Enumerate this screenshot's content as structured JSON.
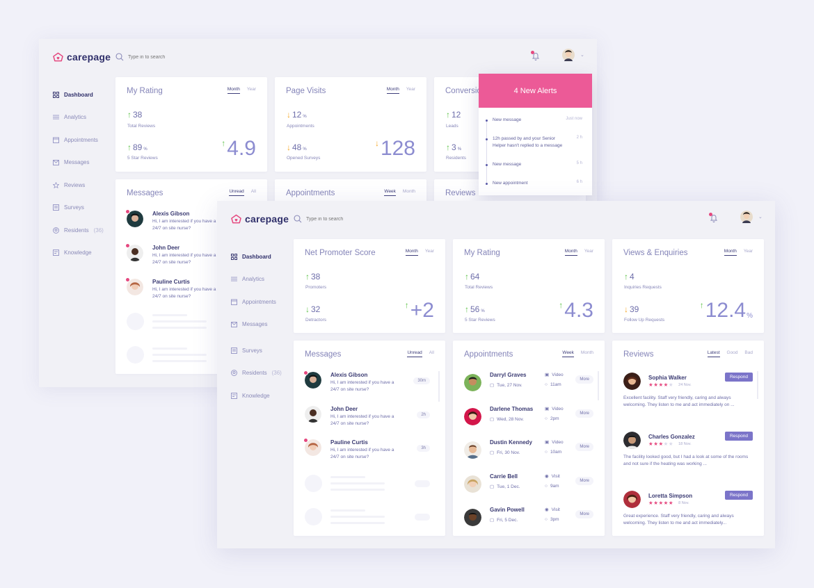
{
  "colors": {
    "accent": "#e5487f",
    "brand_text": "#2f2f6a",
    "up": "#5dc247",
    "down": "#f5a623",
    "respond": "#7b74c9",
    "alert_header": "#ec5a97"
  },
  "back": {
    "logo": "carepage",
    "search_placeholder": "Type in to search",
    "sidebar": [
      {
        "label": "Dashboard",
        "icon": "grid-icon"
      },
      {
        "label": "Analytics",
        "icon": "sliders-icon"
      },
      {
        "label": "Appointments",
        "icon": "calendar-icon"
      },
      {
        "label": "Messages",
        "icon": "mail-icon"
      },
      {
        "label": "Reviews",
        "icon": "star-icon"
      },
      {
        "label": "Surveys",
        "icon": "survey-icon"
      },
      {
        "label": "Residents",
        "count": "(36)",
        "icon": "residents-icon"
      },
      {
        "label": "Knowledge",
        "icon": "book-icon"
      }
    ],
    "rating": {
      "title": "My Rating",
      "tabs": [
        "Month",
        "Year"
      ],
      "v1": "38",
      "l1": "Total Reviews",
      "v2": "89",
      "v2_unit": "%",
      "l2": "5 Star Reviews",
      "big": "4.9"
    },
    "visits": {
      "title": "Page Visits",
      "tabs": [
        "Month",
        "Year"
      ],
      "v1": "12",
      "v1_unit": "%",
      "l1": "Appointments",
      "v2": "48",
      "v2_unit": "%",
      "l2": "Opened Surveys",
      "big": "128"
    },
    "conversions": {
      "title": "Conversio",
      "v1": "12",
      "l1": "Leads",
      "v2": "3",
      "v2_unit": "%",
      "l2": "Residents"
    },
    "messages": {
      "title": "Messages",
      "tabs": [
        "Unread",
        "All"
      ],
      "items": [
        {
          "name": "Alexis Gibson",
          "text": "Hi, I am interested if you have a 24/7 on site nurse?"
        },
        {
          "name": "John Deer",
          "text": "Hi, I am interested if you have a 24/7 on site nurse?"
        },
        {
          "name": "Pauline Curtis",
          "text": "Hi, I am interested if you have a 24/7 on site nurse?"
        }
      ]
    },
    "appointments": {
      "title": "Appointments",
      "tabs": [
        "Week",
        "Month"
      ]
    },
    "reviews": {
      "title": "Reviews"
    },
    "alerts": {
      "title": "4 New Alerts",
      "items": [
        {
          "text": "New message",
          "time": "Just now"
        },
        {
          "text": "12h passed by and your Senior Helper hasn't replied to a message",
          "time": "2 h"
        },
        {
          "text": "New message",
          "time": "5 h"
        },
        {
          "text": "New appointment",
          "time": "6 h"
        }
      ]
    }
  },
  "front": {
    "logo": "carepage",
    "search_placeholder": "Type in to search",
    "sidebar": [
      {
        "label": "Dashboard",
        "icon": "grid-icon"
      },
      {
        "label": "Analytics",
        "icon": "sliders-icon"
      },
      {
        "label": "Appointments",
        "icon": "calendar-icon"
      },
      {
        "label": "Messages",
        "icon": "mail-icon"
      },
      {
        "label": "Surveys",
        "icon": "survey-icon"
      },
      {
        "label": "Residents",
        "count": "(36)",
        "icon": "residents-icon"
      },
      {
        "label": "Knowledge",
        "icon": "book-icon"
      }
    ],
    "nps": {
      "title": "Net Promoter Score",
      "tabs": [
        "Month",
        "Year"
      ],
      "v1": "38",
      "l1": "Promoters",
      "v2": "32",
      "l2": "Detractors",
      "big": "+2"
    },
    "rating": {
      "title": "My Rating",
      "tabs": [
        "Month",
        "Year"
      ],
      "v1": "64",
      "l1": "Total Reviews",
      "v2": "56",
      "v2_unit": "%",
      "l2": "5 Star Reviews",
      "big": "4.3"
    },
    "views": {
      "title": "Views & Enquiries",
      "tabs": [
        "Month",
        "Year"
      ],
      "v1": "4",
      "l1": "Inquiries Requests",
      "v2": "39",
      "l2": "Follow Up Requests",
      "big": "12.4",
      "big_unit": "%"
    },
    "messages": {
      "title": "Messages",
      "tabs": [
        "Unread",
        "All"
      ],
      "items": [
        {
          "name": "Alexis Gibson",
          "text": "Hi, I am interested if you have a 24/7 on site nurse?",
          "time": "30m"
        },
        {
          "name": "John Deer",
          "text": "Hi, I am interested if you have a 24/7 on site nurse?",
          "time": "2h"
        },
        {
          "name": "Pauline Curtis",
          "text": "Hi, I am interested if you have a 24/7 on site nurse?",
          "time": "3h"
        }
      ]
    },
    "appointments": {
      "title": "Appointments",
      "tabs": [
        "Week",
        "Month"
      ],
      "more": "More",
      "items": [
        {
          "name": "Darryl Graves",
          "date": "Tue, 27 Nov.",
          "type": "Video",
          "time": "11am"
        },
        {
          "name": "Darlene Thomas",
          "date": "Wed, 28 Nov.",
          "type": "Video",
          "time": "2pm"
        },
        {
          "name": "Dustin Kennedy",
          "date": "Fri, 30 Nov.",
          "type": "Video",
          "time": "10am"
        },
        {
          "name": "Carrie Bell",
          "date": "Tue, 1 Dec.",
          "type": "Visit",
          "time": "9am"
        },
        {
          "name": "Gavin Powell",
          "date": "Fri, 5 Dec.",
          "type": "Visit",
          "time": "3pm"
        }
      ]
    },
    "reviews": {
      "title": "Reviews",
      "tabs": [
        "Latest",
        "Good",
        "Bad"
      ],
      "respond": "Respond",
      "items": [
        {
          "name": "Sophia Walker",
          "stars": 4,
          "date": "24 Nov.",
          "text": "Excellent facility. Staff very friendly, caring and always welcoming. They listen to me and act immediately on ..."
        },
        {
          "name": "Charles Gonzalez",
          "stars": 3,
          "date": "18 Nov.",
          "text": "The facility looked good, but I had a look at some of the rooms and not sure if the heating was working ..."
        },
        {
          "name": "Loretta Simpson",
          "stars": 5,
          "date": "8 Nov.",
          "text": "Great experience. Staff very friendly, caring and always welcoming. They listen to me and act immediately..."
        }
      ]
    }
  }
}
